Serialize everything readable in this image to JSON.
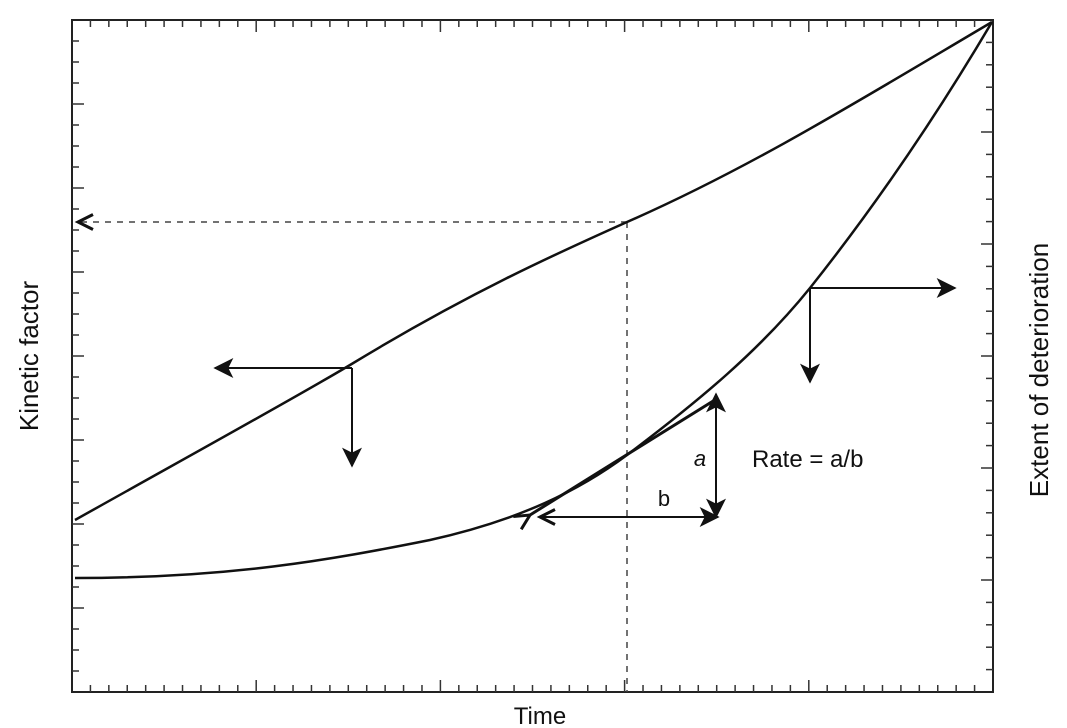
{
  "figure": {
    "x_axis_label": "Time",
    "left_axis_label": "Kinetic factor",
    "right_axis_label": "Extent of deterioration",
    "rate_label": "Rate = a/b",
    "a_label": "a",
    "b_label": "b",
    "colors": {
      "line": "#111111",
      "dash": "#444444",
      "background": "#ffffff"
    }
  }
}
